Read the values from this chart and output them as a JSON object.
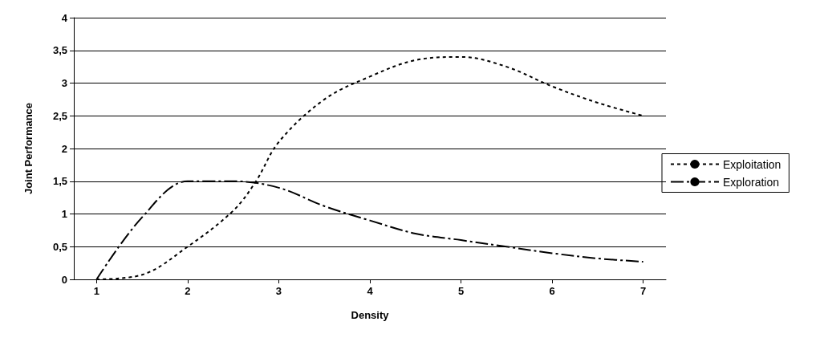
{
  "chart_data": {
    "type": "line",
    "xlabel": "Density",
    "ylabel": "Joint Performance",
    "xlim": [
      0.75,
      7.25
    ],
    "xticks": [
      1,
      2,
      3,
      4,
      5,
      6,
      7
    ],
    "ylim": [
      0,
      4
    ],
    "yticks": [
      0,
      {
        "value": 0.5,
        "label": "0,5"
      },
      1,
      {
        "value": 1.5,
        "label": "1,5"
      },
      2,
      {
        "value": 2.5,
        "label": "2,5"
      },
      3,
      {
        "value": 3.5,
        "label": "3,5"
      },
      4
    ],
    "grid": "y",
    "legend": "right",
    "marker": "none",
    "series": [
      {
        "name": "Exploitation",
        "color": "#000000",
        "line_style": "dotted",
        "x": [
          1,
          1.5,
          2,
          2.5,
          2.75,
          3,
          3.5,
          4,
          4.5,
          5,
          5.5,
          6,
          6.5,
          7
        ],
        "values": [
          0,
          0.07,
          0.5,
          1.05,
          1.5,
          2.1,
          2.75,
          3.1,
          3.35,
          3.4,
          3.25,
          2.95,
          2.7,
          2.5
        ]
      },
      {
        "name": "Exploration",
        "color": "#000000",
        "line_style": "dashed",
        "x": [
          1,
          1.5,
          2,
          2.5,
          3,
          3.5,
          4,
          4.5,
          5,
          5.5,
          6,
          6.5,
          7
        ],
        "values": [
          0,
          0.95,
          1.5,
          1.5,
          1.4,
          1.12,
          0.9,
          0.7,
          0.6,
          0.5,
          0.4,
          0.32,
          0.27
        ]
      }
    ]
  }
}
